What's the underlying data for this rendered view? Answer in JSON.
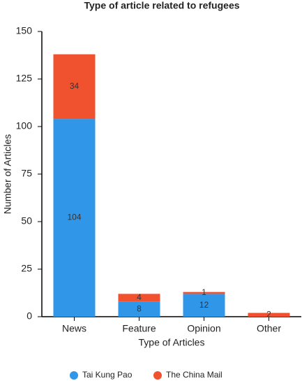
{
  "chart_data": {
    "type": "stacked_bar",
    "title": "Type of article related to refugees",
    "x_label": "Type of Articles",
    "y_label": "Number of Articles",
    "categories": [
      "News",
      "Feature",
      "Opinion",
      "Other"
    ],
    "series": [
      {
        "name": "Tai Kung Pao",
        "color": "#2f96e8",
        "values": [
          104,
          8,
          12,
          0
        ]
      },
      {
        "name": "The China Mail",
        "color": "#f0522f",
        "values": [
          34,
          4,
          1,
          2
        ]
      }
    ],
    "ylim": [
      0,
      150
    ],
    "yticks": [
      0,
      25,
      50,
      75,
      100,
      125,
      150
    ],
    "grid": false
  }
}
